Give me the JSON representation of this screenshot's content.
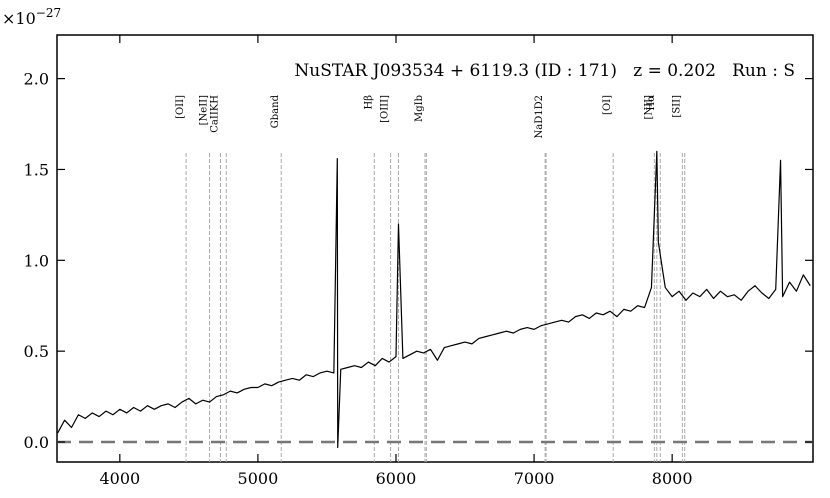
{
  "chart_data": {
    "type": "line",
    "title": "NuSTAR J093534 + 6119.3 (ID : 171)   z = 0.202   Run : S",
    "y_offset_base": "×10",
    "y_offset_exponent": "−27",
    "color": "#000000",
    "xlim": [
      3545,
      9020
    ],
    "ylim": [
      -0.11,
      2.24
    ],
    "xticks": [
      4000,
      5000,
      6000,
      7000,
      8000
    ],
    "yticks": [
      {
        "value": 0,
        "label": "0.0"
      },
      {
        "value": 0.5,
        "label": "0.5"
      },
      {
        "value": 1,
        "label": "1.0"
      },
      {
        "value": 1.5,
        "label": "1.5"
      },
      {
        "value": 2,
        "label": "2.0"
      }
    ],
    "hline": 0,
    "x": [
      3550,
      3600,
      3650,
      3700,
      3750,
      3800,
      3850,
      3900,
      3950,
      4000,
      4050,
      4100,
      4150,
      4200,
      4250,
      4300,
      4350,
      4400,
      4450,
      4500,
      4550,
      4600,
      4650,
      4700,
      4750,
      4800,
      4850,
      4900,
      4950,
      5000,
      5050,
      5100,
      5150,
      5200,
      5250,
      5300,
      5350,
      5400,
      5450,
      5500,
      5550,
      5575,
      5578,
      5600,
      5650,
      5700,
      5750,
      5800,
      5850,
      5900,
      5950,
      6000,
      6018,
      6050,
      6100,
      6150,
      6200,
      6250,
      6300,
      6350,
      6400,
      6450,
      6500,
      6550,
      6600,
      6650,
      6700,
      6750,
      6800,
      6850,
      6900,
      6950,
      7000,
      7050,
      7100,
      7150,
      7200,
      7250,
      7300,
      7350,
      7400,
      7450,
      7500,
      7550,
      7600,
      7650,
      7700,
      7750,
      7800,
      7850,
      7889,
      7900,
      7950,
      8000,
      8050,
      8100,
      8150,
      8200,
      8250,
      8300,
      8350,
      8400,
      8450,
      8500,
      8550,
      8600,
      8650,
      8700,
      8750,
      8785,
      8800,
      8850,
      8900,
      8950,
      9000
    ],
    "values": [
      0.05,
      0.12,
      0.08,
      0.15,
      0.13,
      0.16,
      0.14,
      0.17,
      0.15,
      0.18,
      0.16,
      0.19,
      0.17,
      0.2,
      0.18,
      0.2,
      0.21,
      0.19,
      0.22,
      0.24,
      0.21,
      0.23,
      0.22,
      0.25,
      0.26,
      0.28,
      0.27,
      0.29,
      0.3,
      0.3,
      0.32,
      0.31,
      0.33,
      0.34,
      0.35,
      0.34,
      0.37,
      0.36,
      0.38,
      0.39,
      0.38,
      1.56,
      -0.03,
      0.4,
      0.41,
      0.42,
      0.41,
      0.44,
      0.42,
      0.46,
      0.44,
      0.47,
      1.2,
      0.46,
      0.48,
      0.5,
      0.49,
      0.51,
      0.45,
      0.52,
      0.53,
      0.54,
      0.55,
      0.54,
      0.57,
      0.58,
      0.59,
      0.6,
      0.61,
      0.6,
      0.62,
      0.63,
      0.62,
      0.64,
      0.65,
      0.66,
      0.67,
      0.66,
      0.69,
      0.7,
      0.68,
      0.71,
      0.7,
      0.72,
      0.69,
      0.73,
      0.72,
      0.75,
      0.74,
      0.85,
      1.6,
      1.1,
      0.85,
      0.8,
      0.83,
      0.78,
      0.82,
      0.8,
      0.84,
      0.79,
      0.83,
      0.8,
      0.81,
      0.78,
      0.83,
      0.86,
      0.82,
      0.79,
      0.84,
      1.55,
      0.8,
      0.88,
      0.83,
      0.92,
      0.86
    ],
    "lines": [
      {
        "label": "[OII]",
        "wavelengths": [
          4480
        ]
      },
      {
        "label": "[NeII]",
        "wavelengths": [
          4650
        ]
      },
      {
        "label": "CaIIKH",
        "wavelengths": [
          4729,
          4771
        ]
      },
      {
        "label": "Gband",
        "wavelengths": [
          5169
        ]
      },
      {
        "label": "Hβ",
        "wavelengths": [
          5843
        ]
      },
      {
        "label": "[OIII]",
        "wavelengths": [
          5961,
          6018
        ]
      },
      {
        "label": "MgIb",
        "wavelengths": [
          6210,
          6220
        ]
      },
      {
        "label": "NaD1D2",
        "wavelengths": [
          7080,
          7087
        ]
      },
      {
        "label": "[OI]",
        "wavelengths": [
          7573
        ]
      },
      {
        "label": "Hα",
        "wavelengths": [
          7889
        ]
      },
      {
        "label": "[NII]",
        "wavelengths": [
          7871,
          7914
        ]
      },
      {
        "label": "[SII]",
        "wavelengths": [
          8074,
          8091
        ]
      }
    ]
  }
}
